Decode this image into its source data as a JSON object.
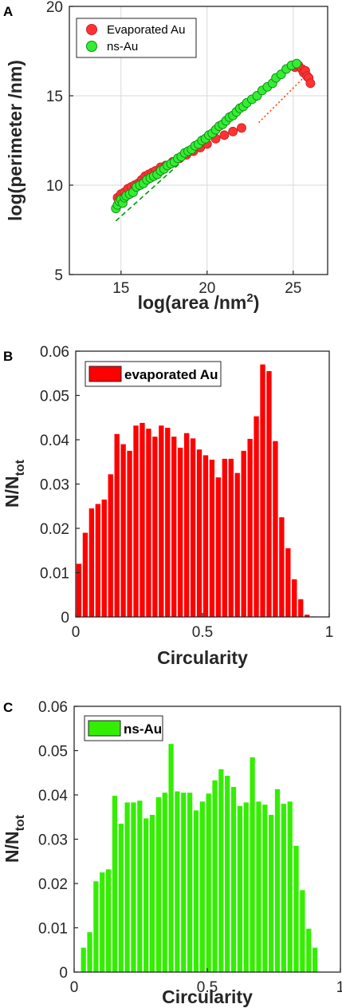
{
  "panels": {
    "a": {
      "label": "A"
    },
    "b": {
      "label": "B"
    },
    "c": {
      "label": "C"
    }
  },
  "colors": {
    "evaporated": "#ff3333",
    "nsau": "#33ee33",
    "bar_red": "#ff0000",
    "bar_green": "#33ee00",
    "axis": "#262626",
    "grid": "#d9d9d9"
  },
  "chart_data": [
    {
      "type": "scatter",
      "xlabel": "log(area /nm",
      "xlabel_sup": "2",
      "xlabel_close": ")",
      "ylabel": "log(perimeter /nm)",
      "xlim": [
        12,
        27
      ],
      "ylim": [
        5,
        20
      ],
      "xticks": [
        "15",
        "20",
        "25"
      ],
      "yticks": [
        "5",
        "10",
        "15",
        "20"
      ],
      "grid": true,
      "legend_position": "top-left",
      "series": [
        {
          "name": "Evaporated Au",
          "color": "#ff3333",
          "x": [
            14.8,
            15.0,
            15.2,
            15.4,
            15.6,
            15.8,
            16.0,
            16.2,
            16.4,
            16.6,
            16.8,
            17.0,
            17.3,
            17.6,
            18.0,
            18.4,
            18.8,
            19.2,
            19.6,
            20.0,
            20.5,
            21.0,
            21.5,
            22.0,
            25.1,
            25.3,
            25.5,
            25.6,
            25.7,
            25.8,
            25.9,
            26.0
          ],
          "y": [
            9.3,
            9.5,
            9.6,
            9.8,
            9.9,
            10.0,
            10.1,
            10.3,
            10.5,
            10.6,
            10.7,
            10.8,
            11.0,
            11.1,
            11.3,
            11.5,
            11.7,
            11.9,
            12.1,
            12.3,
            12.6,
            12.8,
            13.0,
            13.2,
            16.6,
            16.7,
            16.5,
            16.3,
            16.4,
            16.1,
            16.0,
            15.7
          ]
        },
        {
          "name": "ns-Au",
          "color": "#33ee33",
          "x": [
            14.7,
            14.8,
            14.9,
            15.0,
            15.1,
            15.2,
            15.3,
            15.5,
            15.7,
            15.9,
            16.1,
            16.3,
            16.5,
            16.7,
            16.9,
            17.1,
            17.3,
            17.5,
            17.7,
            17.9,
            18.1,
            18.3,
            18.5,
            18.7,
            18.9,
            19.1,
            19.3,
            19.5,
            19.7,
            19.9,
            20.1,
            20.3,
            20.5,
            20.7,
            20.9,
            21.1,
            21.3,
            21.5,
            21.7,
            21.9,
            22.1,
            22.3,
            22.6,
            22.9,
            23.2,
            23.5,
            23.8,
            24.0,
            24.3,
            24.6,
            24.9,
            25.2
          ],
          "y": [
            8.7,
            8.9,
            9.1,
            9.2,
            9.0,
            9.3,
            9.4,
            9.5,
            9.6,
            9.9,
            10.0,
            10.1,
            10.3,
            10.4,
            10.5,
            10.6,
            10.8,
            10.9,
            11.1,
            11.2,
            11.3,
            11.5,
            11.6,
            11.8,
            11.9,
            12.0,
            12.2,
            12.3,
            12.5,
            12.6,
            12.8,
            12.9,
            13.1,
            13.3,
            13.4,
            13.6,
            13.8,
            13.9,
            14.1,
            14.3,
            14.4,
            14.6,
            14.8,
            15.0,
            15.3,
            15.5,
            15.7,
            16.0,
            16.2,
            16.5,
            16.7,
            16.8
          ]
        }
      ],
      "fit_lines": [
        {
          "series": "ns-Au",
          "style": "dashed",
          "color": "#009900",
          "x": [
            14.7,
            23.0
          ],
          "y": [
            8.0,
            15.2
          ]
        },
        {
          "series": "Evaporated Au",
          "style": "dotted",
          "color": "#ff4400",
          "x": [
            23.0,
            25.9
          ],
          "y": [
            13.5,
            16.3
          ]
        }
      ]
    },
    {
      "type": "bar",
      "xlabel": "Circularity",
      "ylabel_main": "N/N",
      "ylabel_sub": "tot",
      "xlim": [
        0,
        1
      ],
      "ylim": [
        0,
        0.06
      ],
      "xticks": [
        "0",
        "0.5",
        "1"
      ],
      "yticks": [
        "0",
        "0.01",
        "0.02",
        "0.03",
        "0.04",
        "0.05",
        "0.06"
      ],
      "grid": false,
      "legend_position": "top-left",
      "series": [
        {
          "name": "evaporated Au",
          "color": "#ff0000",
          "bin_width": 0.025,
          "bin_centers": [
            0.0125,
            0.0375,
            0.0625,
            0.0875,
            0.1125,
            0.1375,
            0.1625,
            0.1875,
            0.2125,
            0.2375,
            0.2625,
            0.2875,
            0.3125,
            0.3375,
            0.3625,
            0.3875,
            0.4125,
            0.4375,
            0.4625,
            0.4875,
            0.5125,
            0.5375,
            0.5625,
            0.5875,
            0.6125,
            0.6375,
            0.6625,
            0.6875,
            0.7125,
            0.7375,
            0.7625,
            0.7875,
            0.8125,
            0.8375,
            0.8625,
            0.8875,
            0.9125,
            0.9375
          ],
          "values": [
            0.012,
            0.019,
            0.0245,
            0.0255,
            0.0265,
            0.0322,
            0.0413,
            0.039,
            0.0375,
            0.0432,
            0.0438,
            0.0425,
            0.0407,
            0.0432,
            0.0427,
            0.0407,
            0.0382,
            0.0415,
            0.0403,
            0.0378,
            0.0365,
            0.0355,
            0.0315,
            0.0357,
            0.0357,
            0.0325,
            0.0375,
            0.0402,
            0.0453,
            0.057,
            0.0555,
            0.0397,
            0.0225,
            0.0155,
            0.0085,
            0.004,
            0.0005,
            0.0001
          ]
        }
      ]
    },
    {
      "type": "bar",
      "xlabel": "Circularity",
      "ylabel_main": "N/N",
      "ylabel_sub": "tot",
      "xlim": [
        0,
        1
      ],
      "ylim": [
        0,
        0.06
      ],
      "xticks": [
        "0",
        "0.5",
        "1"
      ],
      "yticks": [
        "0",
        "0.01",
        "0.02",
        "0.03",
        "0.04",
        "0.05",
        "0.06"
      ],
      "grid": false,
      "legend_position": "top-left",
      "series": [
        {
          "name": "ns-Au",
          "color": "#33ee00",
          "bin_width": 0.0235,
          "bin_centers": [
            0.035,
            0.0585,
            0.082,
            0.1055,
            0.129,
            0.1525,
            0.176,
            0.1995,
            0.223,
            0.2465,
            0.27,
            0.2935,
            0.317,
            0.3405,
            0.364,
            0.3875,
            0.411,
            0.4345,
            0.458,
            0.4815,
            0.505,
            0.5285,
            0.552,
            0.5755,
            0.599,
            0.6225,
            0.646,
            0.6695,
            0.693,
            0.7165,
            0.74,
            0.7635,
            0.787,
            0.8105,
            0.834,
            0.8575,
            0.881,
            0.9045
          ],
          "values": [
            0.0055,
            0.009,
            0.0205,
            0.0225,
            0.0232,
            0.0398,
            0.0335,
            0.0383,
            0.0383,
            0.0387,
            0.0347,
            0.0355,
            0.0395,
            0.0405,
            0.0515,
            0.0408,
            0.0405,
            0.0405,
            0.0365,
            0.0385,
            0.0403,
            0.0433,
            0.0458,
            0.0443,
            0.0418,
            0.0375,
            0.0383,
            0.0485,
            0.0385,
            0.0378,
            0.0355,
            0.0413,
            0.038,
            0.0385,
            0.0285,
            0.0185,
            0.0098,
            0.0055
          ]
        }
      ]
    }
  ]
}
